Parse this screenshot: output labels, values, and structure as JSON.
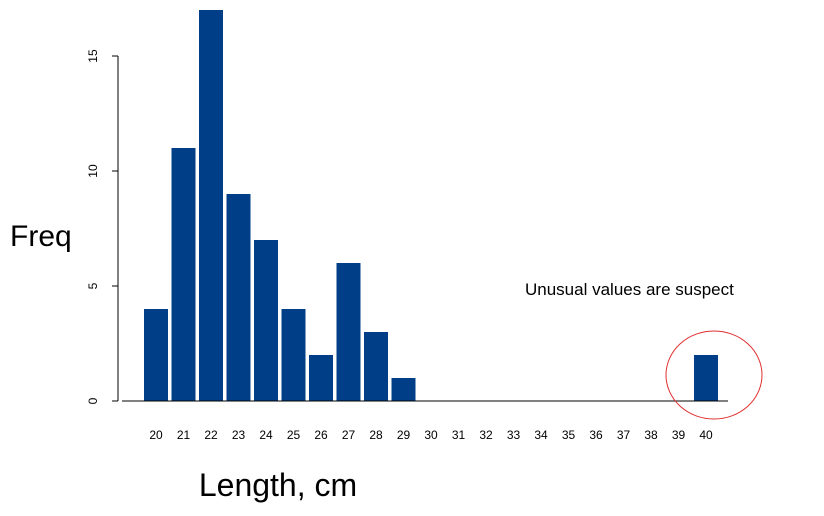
{
  "chart_data": {
    "type": "bar",
    "categories": [
      "20",
      "21",
      "22",
      "23",
      "24",
      "25",
      "26",
      "27",
      "28",
      "29",
      "30",
      "31",
      "32",
      "33",
      "34",
      "35",
      "36",
      "37",
      "38",
      "39",
      "40"
    ],
    "values": [
      4,
      11,
      17,
      9,
      7,
      4,
      2,
      6,
      3,
      1,
      0,
      0,
      0,
      0,
      0,
      0,
      0,
      0,
      0,
      0,
      2
    ],
    "xlabel": "Length, cm",
    "ylabel": "Freq",
    "ylim": [
      0,
      17
    ],
    "yticks": [
      "0",
      "5",
      "10",
      "15"
    ],
    "grid": false,
    "bar_color": "#003f87",
    "annotation": {
      "text": "Unusual values are suspect",
      "highlight_category": "40",
      "highlight_color": "#e03030"
    }
  }
}
